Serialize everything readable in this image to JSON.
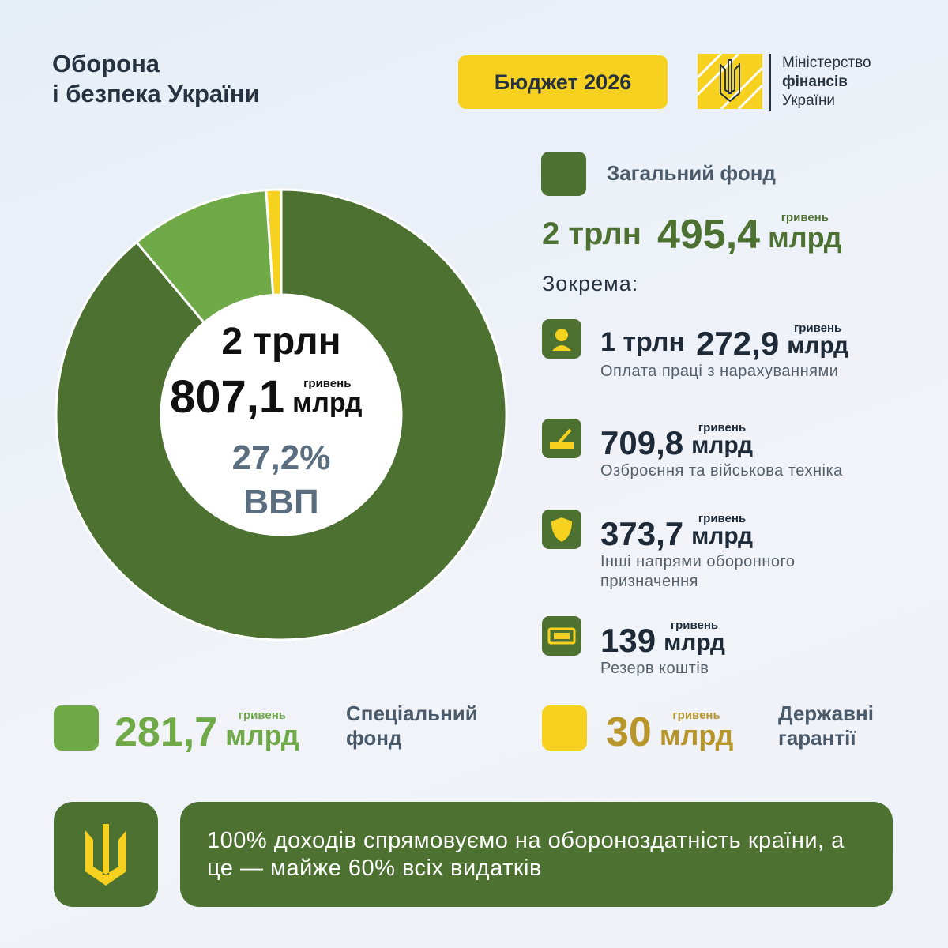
{
  "header": {
    "title_line1": "Оборона",
    "title_line2": "і безпека України",
    "badge": "Бюджет 2026",
    "ministry_line1": "Міністерство",
    "ministry_line2": "фінансів",
    "ministry_line3": "України"
  },
  "chart_data": {
    "type": "pie",
    "donut": true,
    "categories": [
      "Загальний фонд",
      "Спеціальний фонд",
      "Державні гарантії"
    ],
    "values": [
      2495.4,
      281.7,
      30
    ],
    "colors": [
      "#4d7131",
      "#70aa48",
      "#f6d11f"
    ]
  },
  "center": {
    "trln": "2 трлн",
    "amount": "807,1",
    "currency": "гривень",
    "unit": "млрд",
    "gdp_share": "27,2%",
    "gdp": "ВВП"
  },
  "general": {
    "trln": "2 трлн",
    "amount": "495,4",
    "currency": "гривень",
    "unit": "млрд",
    "including": "Зокрема:"
  },
  "items": [
    {
      "trln": "1 трлн",
      "amount": "272,9",
      "currency": "гривень",
      "unit": "млрд",
      "label": "Оплата праці з нарахуваннями"
    },
    {
      "amount": "709,8",
      "currency": "гривень",
      "unit": "млрд",
      "label": "Озброєння та військова техніка"
    },
    {
      "amount": "373,7",
      "currency": "гривень",
      "unit": "млрд",
      "label": "Інші напрями оборонного призначення"
    },
    {
      "amount": "139",
      "currency": "гривень",
      "unit": "млрд",
      "label": "Резерв коштів"
    }
  ],
  "special": {
    "amount": "281,7",
    "currency": "гривень",
    "unit": "млрд"
  },
  "guarantees": {
    "amount": "30",
    "currency": "гривень",
    "unit": "млрд"
  },
  "footer": {
    "text": "100% доходів спрямовуємо на обороноздатність країни, а це — майже 60% всіх видатків"
  }
}
